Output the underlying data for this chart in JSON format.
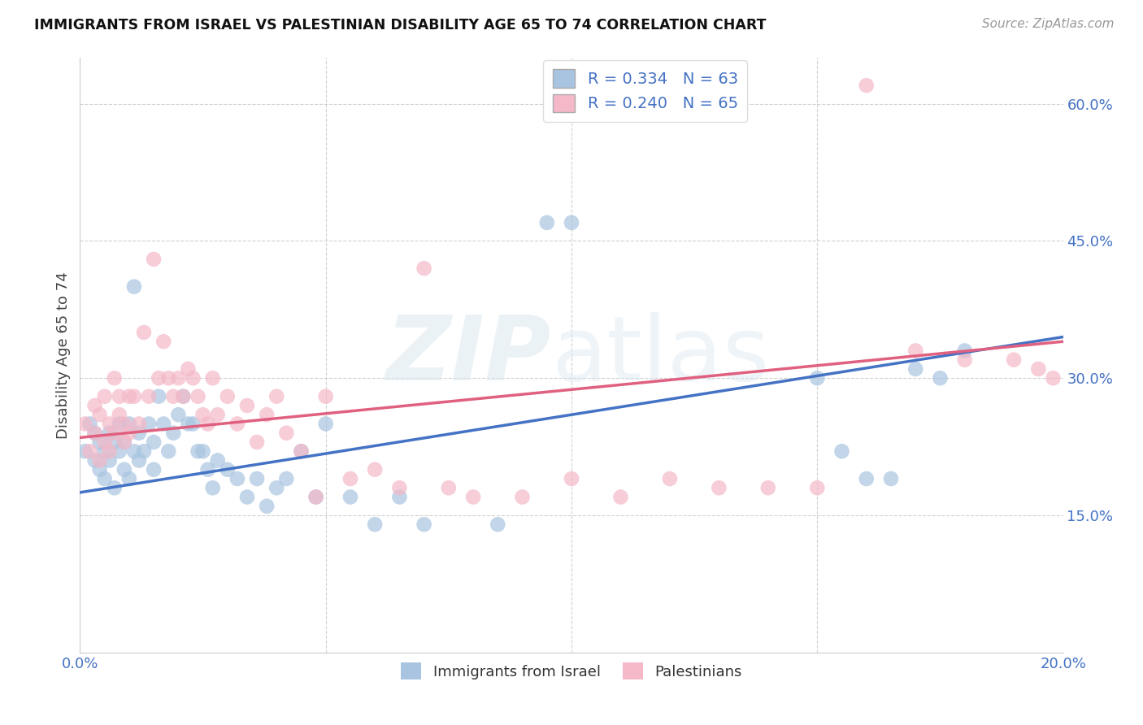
{
  "title": "IMMIGRANTS FROM ISRAEL VS PALESTINIAN DISABILITY AGE 65 TO 74 CORRELATION CHART",
  "source": "Source: ZipAtlas.com",
  "ylabel": "Disability Age 65 to 74",
  "xlim": [
    0.0,
    0.2
  ],
  "ylim": [
    0.0,
    0.65
  ],
  "x_tick_vals": [
    0.0,
    0.05,
    0.1,
    0.15,
    0.2
  ],
  "x_tick_labels": [
    "0.0%",
    "",
    "",
    "",
    "20.0%"
  ],
  "y_tick_vals": [
    0.0,
    0.15,
    0.3,
    0.45,
    0.6
  ],
  "y_tick_labels": [
    "",
    "15.0%",
    "30.0%",
    "45.0%",
    "60.0%"
  ],
  "grid_color": "#cccccc",
  "background_color": "#ffffff",
  "israel_color": "#a8c4e0",
  "israel_line_color": "#4472c4",
  "palestinian_color": "#f4b8c8",
  "palestinian_line_color": "#e06080",
  "israel_R": 0.334,
  "israel_N": 63,
  "palestinian_R": 0.24,
  "palestinian_N": 65,
  "legend_label_israel": "Immigrants from Israel",
  "legend_label_palestinian": "Palestinians",
  "israel_line_x0": 0.0,
  "israel_line_y0": 0.175,
  "israel_line_x1": 0.2,
  "israel_line_y1": 0.345,
  "pal_line_x0": 0.0,
  "pal_line_y0": 0.235,
  "pal_line_x1": 0.2,
  "pal_line_y1": 0.34,
  "israel_x": [
    0.001,
    0.002,
    0.003,
    0.003,
    0.004,
    0.004,
    0.005,
    0.005,
    0.006,
    0.006,
    0.007,
    0.007,
    0.008,
    0.008,
    0.009,
    0.009,
    0.01,
    0.01,
    0.011,
    0.011,
    0.012,
    0.012,
    0.013,
    0.014,
    0.015,
    0.015,
    0.016,
    0.017,
    0.018,
    0.019,
    0.02,
    0.021,
    0.022,
    0.023,
    0.024,
    0.025,
    0.026,
    0.027,
    0.028,
    0.03,
    0.032,
    0.034,
    0.036,
    0.038,
    0.04,
    0.042,
    0.045,
    0.048,
    0.05,
    0.055,
    0.06,
    0.065,
    0.07,
    0.085,
    0.095,
    0.1,
    0.15,
    0.155,
    0.16,
    0.165,
    0.17,
    0.175,
    0.18
  ],
  "israel_y": [
    0.22,
    0.25,
    0.21,
    0.24,
    0.23,
    0.2,
    0.22,
    0.19,
    0.24,
    0.21,
    0.23,
    0.18,
    0.22,
    0.25,
    0.2,
    0.23,
    0.25,
    0.19,
    0.4,
    0.22,
    0.24,
    0.21,
    0.22,
    0.25,
    0.2,
    0.23,
    0.28,
    0.25,
    0.22,
    0.24,
    0.26,
    0.28,
    0.25,
    0.25,
    0.22,
    0.22,
    0.2,
    0.18,
    0.21,
    0.2,
    0.19,
    0.17,
    0.19,
    0.16,
    0.18,
    0.19,
    0.22,
    0.17,
    0.25,
    0.17,
    0.14,
    0.17,
    0.14,
    0.14,
    0.47,
    0.47,
    0.3,
    0.22,
    0.19,
    0.19,
    0.31,
    0.3,
    0.33
  ],
  "pal_x": [
    0.001,
    0.002,
    0.003,
    0.003,
    0.004,
    0.004,
    0.005,
    0.005,
    0.006,
    0.006,
    0.007,
    0.007,
    0.008,
    0.008,
    0.009,
    0.009,
    0.01,
    0.01,
    0.011,
    0.012,
    0.013,
    0.014,
    0.015,
    0.016,
    0.017,
    0.018,
    0.019,
    0.02,
    0.021,
    0.022,
    0.023,
    0.024,
    0.025,
    0.026,
    0.027,
    0.028,
    0.03,
    0.032,
    0.034,
    0.036,
    0.038,
    0.04,
    0.042,
    0.045,
    0.048,
    0.05,
    0.055,
    0.06,
    0.065,
    0.07,
    0.075,
    0.08,
    0.09,
    0.1,
    0.11,
    0.12,
    0.13,
    0.14,
    0.15,
    0.16,
    0.17,
    0.18,
    0.19,
    0.195,
    0.198
  ],
  "pal_y": [
    0.25,
    0.22,
    0.24,
    0.27,
    0.21,
    0.26,
    0.23,
    0.28,
    0.25,
    0.22,
    0.24,
    0.3,
    0.26,
    0.28,
    0.23,
    0.25,
    0.24,
    0.28,
    0.28,
    0.25,
    0.35,
    0.28,
    0.43,
    0.3,
    0.34,
    0.3,
    0.28,
    0.3,
    0.28,
    0.31,
    0.3,
    0.28,
    0.26,
    0.25,
    0.3,
    0.26,
    0.28,
    0.25,
    0.27,
    0.23,
    0.26,
    0.28,
    0.24,
    0.22,
    0.17,
    0.28,
    0.19,
    0.2,
    0.18,
    0.42,
    0.18,
    0.17,
    0.17,
    0.19,
    0.17,
    0.19,
    0.18,
    0.18,
    0.18,
    0.62,
    0.33,
    0.32,
    0.32,
    0.31,
    0.3
  ]
}
